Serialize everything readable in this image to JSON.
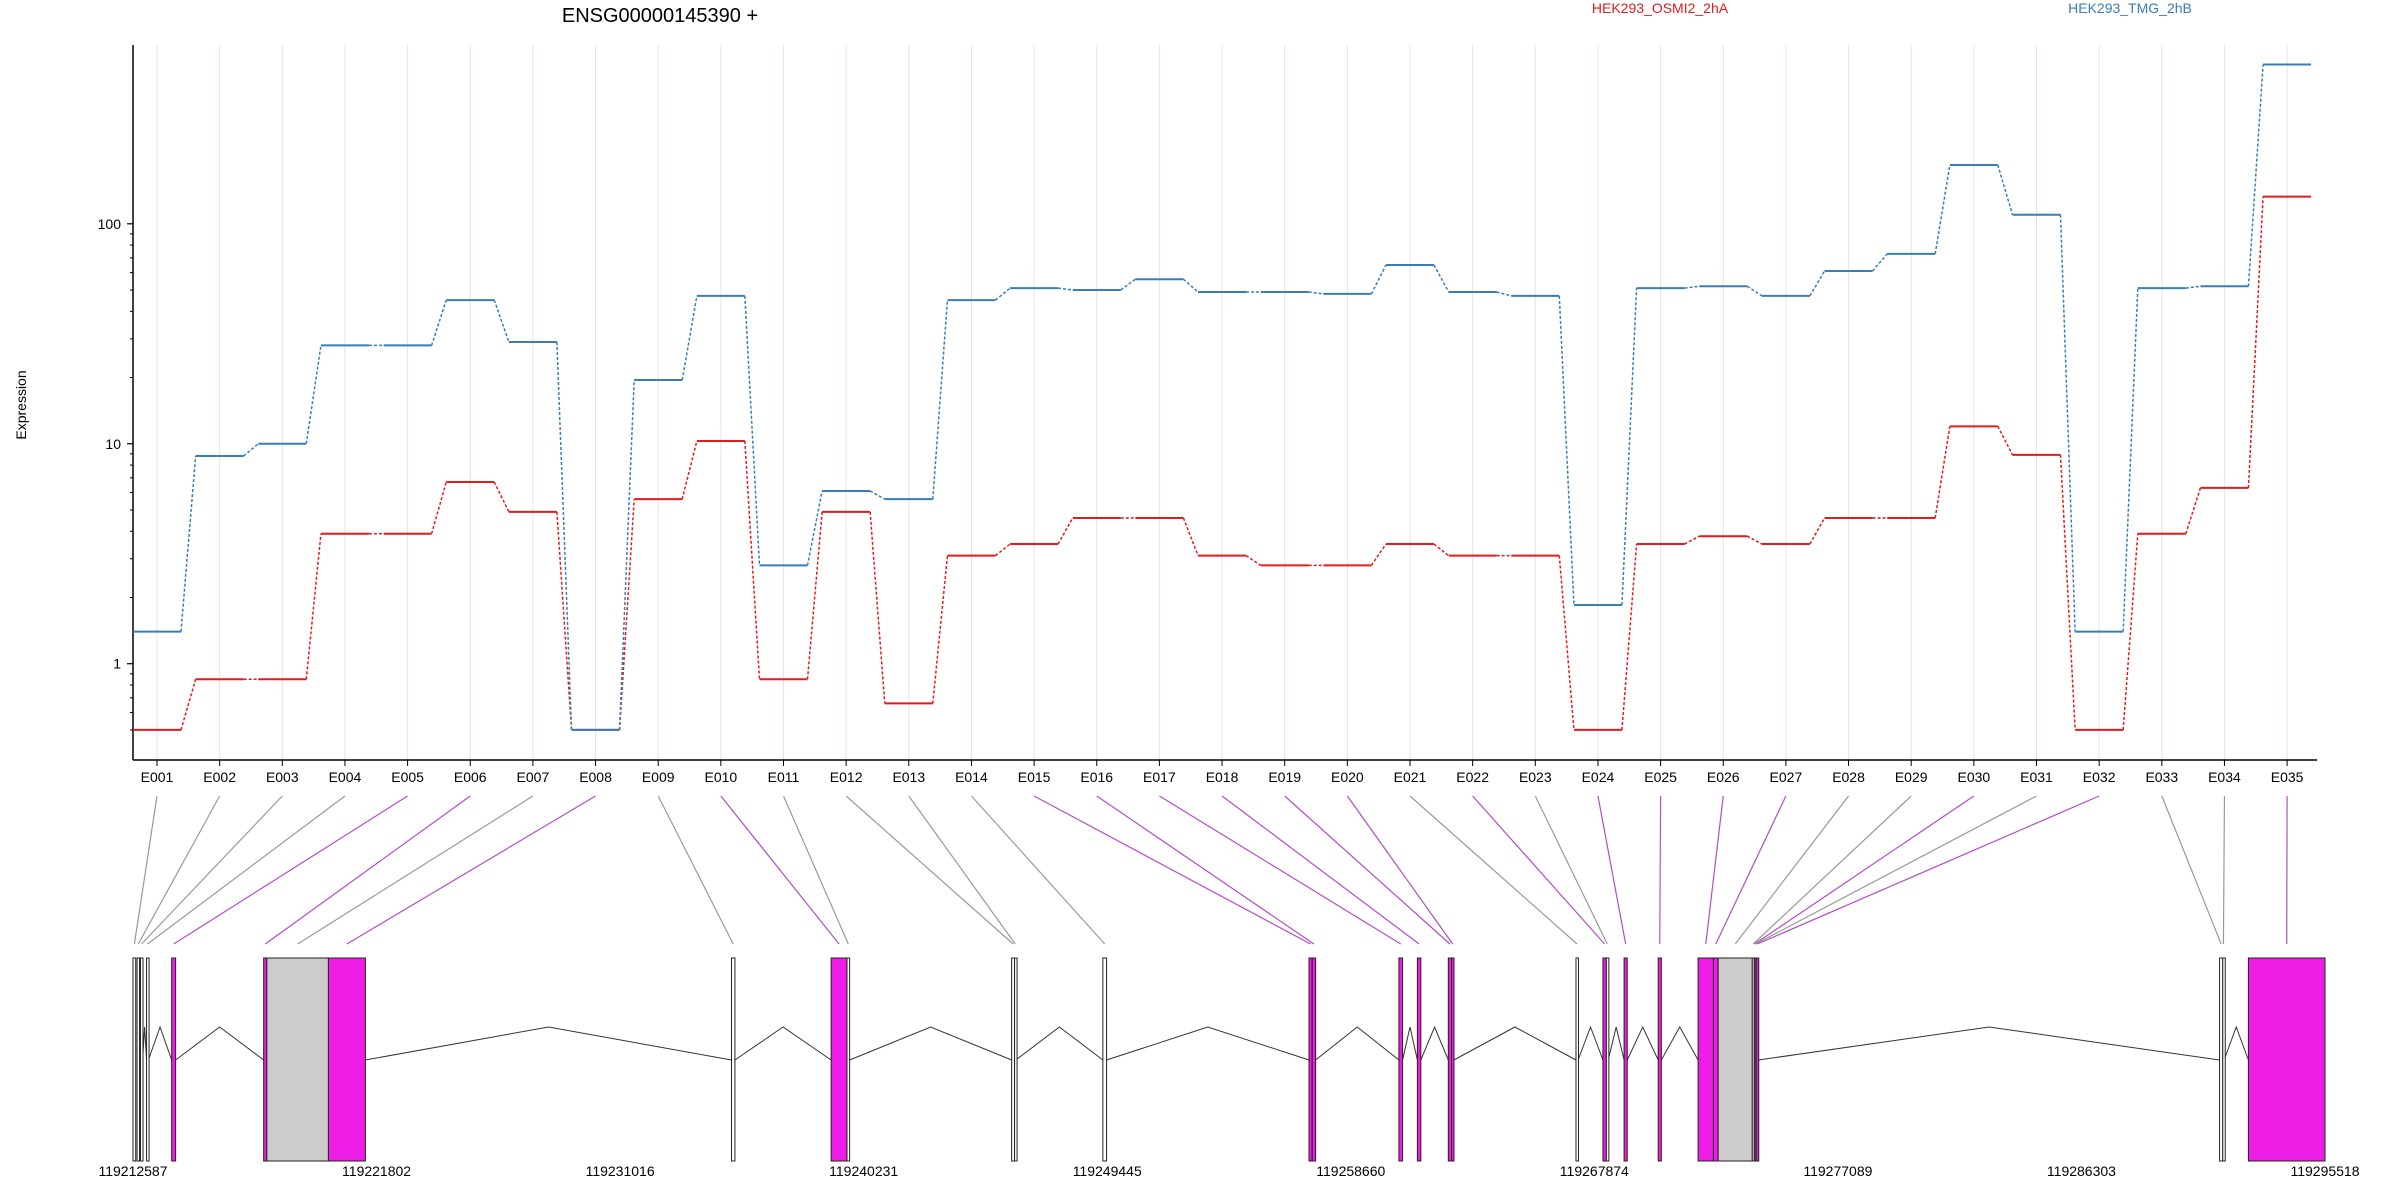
{
  "title": "ENSG00000145390 +",
  "chart_data": {
    "type": "line",
    "title": "ENSG00000145390 +",
    "ylabel": "Expression",
    "xlabel": "",
    "yscale": "log",
    "ylim": [
      0.45,
      650
    ],
    "ytick_labels": [
      "1",
      "10",
      "100"
    ],
    "ytick_values": [
      1,
      10,
      100
    ],
    "grid": "vertical",
    "legend_position": "top-right",
    "categories": [
      "E001",
      "E002",
      "E003",
      "E004",
      "E005",
      "E006",
      "E007",
      "E008",
      "E009",
      "E010",
      "E011",
      "E012",
      "E013",
      "E014",
      "E015",
      "E016",
      "E017",
      "E018",
      "E019",
      "E020",
      "E021",
      "E022",
      "E023",
      "E024",
      "E025",
      "E026",
      "E027",
      "E028",
      "E029",
      "E030",
      "E031",
      "E032",
      "E033",
      "E034",
      "E035"
    ],
    "series": [
      {
        "name": "HEK293_OSMI2_2hA",
        "color": "#e41a1c",
        "values": [
          0.5,
          0.85,
          0.85,
          3.9,
          3.9,
          6.7,
          4.9,
          0.5,
          5.6,
          10.3,
          0.85,
          4.9,
          0.66,
          3.1,
          3.5,
          4.6,
          4.6,
          3.1,
          2.8,
          2.8,
          3.5,
          3.1,
          3.1,
          0.5,
          3.5,
          3.8,
          3.5,
          4.6,
          4.6,
          12.0,
          8.9,
          0.5,
          3.9,
          6.3,
          133
        ]
      },
      {
        "name": "HEK293_TMG_2hB",
        "color": "#377eb8",
        "values": [
          1.4,
          8.8,
          10.0,
          28,
          28,
          45,
          29,
          0.5,
          19.5,
          47,
          2.8,
          6.1,
          5.6,
          45,
          51,
          50,
          56,
          49,
          49,
          48,
          65,
          49,
          47,
          1.85,
          51,
          52,
          47,
          61,
          73,
          185,
          110,
          1.4,
          51,
          52,
          530
        ]
      }
    ],
    "gene_model": {
      "coordinate_labels": [
        "119212587",
        "119221802",
        "119231016",
        "119240231",
        "119249445",
        "119258660",
        "119267874",
        "119277089",
        "119286303",
        "119295518"
      ],
      "coordinate_values": [
        119212587,
        119221802,
        119231016,
        119240231,
        119249445,
        119258660,
        119267874,
        119277089,
        119286303,
        119295518
      ],
      "exons": [
        {
          "id": "E001",
          "start": 119212587,
          "end": 119212690,
          "fill": "none",
          "highlight": false
        },
        {
          "id": "E002",
          "start": 119212740,
          "end": 119212830,
          "fill": "none",
          "highlight": false
        },
        {
          "id": "E003",
          "start": 119212870,
          "end": 119212950,
          "fill": "none",
          "highlight": false
        },
        {
          "id": "E004",
          "start": 119213100,
          "end": 119213170,
          "fill": "none",
          "highlight": false
        },
        {
          "id": "E005",
          "start": 119214050,
          "end": 119214200,
          "fill": "#ee1de6",
          "highlight": true
        },
        {
          "id": "E006",
          "start": 119217530,
          "end": 119217650,
          "fill": "#ee1de6",
          "highlight": true
        },
        {
          "id": "E007",
          "start": 119217650,
          "end": 119219980,
          "fill": "#cccccc",
          "highlight": false
        },
        {
          "id": "E008",
          "start": 119219980,
          "end": 119221380,
          "fill": "#ee1de6",
          "highlight": true
        },
        {
          "id": "E009",
          "start": 119235230,
          "end": 119235360,
          "fill": "none",
          "highlight": false
        },
        {
          "id": "E010",
          "start": 119239000,
          "end": 119239600,
          "fill": "#ee1de6",
          "highlight": true
        },
        {
          "id": "E011",
          "start": 119239600,
          "end": 119239700,
          "fill": "none",
          "highlight": false
        },
        {
          "id": "E012",
          "start": 119245830,
          "end": 119245940,
          "fill": "none",
          "highlight": false
        },
        {
          "id": "E013",
          "start": 119245940,
          "end": 119245990,
          "fill": "none",
          "highlight": false
        },
        {
          "id": "E014",
          "start": 119249280,
          "end": 119249420,
          "fill": "none",
          "highlight": false
        },
        {
          "id": "E015",
          "start": 119257080,
          "end": 119257200,
          "fill": "#ee1de6",
          "highlight": true
        },
        {
          "id": "E016",
          "start": 119257200,
          "end": 119257330,
          "fill": "#ee1de6",
          "highlight": true
        },
        {
          "id": "E017",
          "start": 119260480,
          "end": 119260620,
          "fill": "#ee1de6",
          "highlight": true
        },
        {
          "id": "E018",
          "start": 119261180,
          "end": 119261310,
          "fill": "#ee1de6",
          "highlight": true
        },
        {
          "id": "E019",
          "start": 119262350,
          "end": 119262470,
          "fill": "#ee1de6",
          "highlight": true
        },
        {
          "id": "E020",
          "start": 119262470,
          "end": 119262560,
          "fill": "#ee1de6",
          "highlight": true
        },
        {
          "id": "E021",
          "start": 119267180,
          "end": 119267260,
          "fill": "none",
          "highlight": false
        },
        {
          "id": "E022",
          "start": 119268200,
          "end": 119268330,
          "fill": "#ee1de6",
          "highlight": true
        },
        {
          "id": "E023",
          "start": 119268330,
          "end": 119268400,
          "fill": "none",
          "highlight": false
        },
        {
          "id": "E024",
          "start": 119269000,
          "end": 119269120,
          "fill": "#ee1de6",
          "highlight": true
        },
        {
          "id": "E025",
          "start": 119270290,
          "end": 119270410,
          "fill": "#ee1de6",
          "highlight": true
        },
        {
          "id": "E026",
          "start": 119271800,
          "end": 119272380,
          "fill": "#ee1de6",
          "highlight": true
        },
        {
          "id": "E027",
          "start": 119272380,
          "end": 119272560,
          "fill": "#ee1de6",
          "highlight": true
        },
        {
          "id": "E028",
          "start": 119272560,
          "end": 119273850,
          "fill": "#cccccc",
          "highlight": false
        },
        {
          "id": "E029",
          "start": 119273850,
          "end": 119273920,
          "fill": "none",
          "highlight": false
        },
        {
          "id": "E030",
          "start": 119273920,
          "end": 119273960,
          "fill": "#ee1de6",
          "highlight": true
        },
        {
          "id": "E031",
          "start": 119273960,
          "end": 119274000,
          "fill": "none",
          "highlight": false
        },
        {
          "id": "E032",
          "start": 119274000,
          "end": 119274080,
          "fill": "#ee1de6",
          "highlight": true
        },
        {
          "id": "E033",
          "start": 119291530,
          "end": 119291650,
          "fill": "none",
          "highlight": false
        },
        {
          "id": "E034",
          "start": 119291650,
          "end": 119291700,
          "fill": "none",
          "highlight": false
        },
        {
          "id": "E035",
          "start": 119292620,
          "end": 119295518,
          "fill": "#ee1de6",
          "highlight": true
        }
      ]
    }
  }
}
